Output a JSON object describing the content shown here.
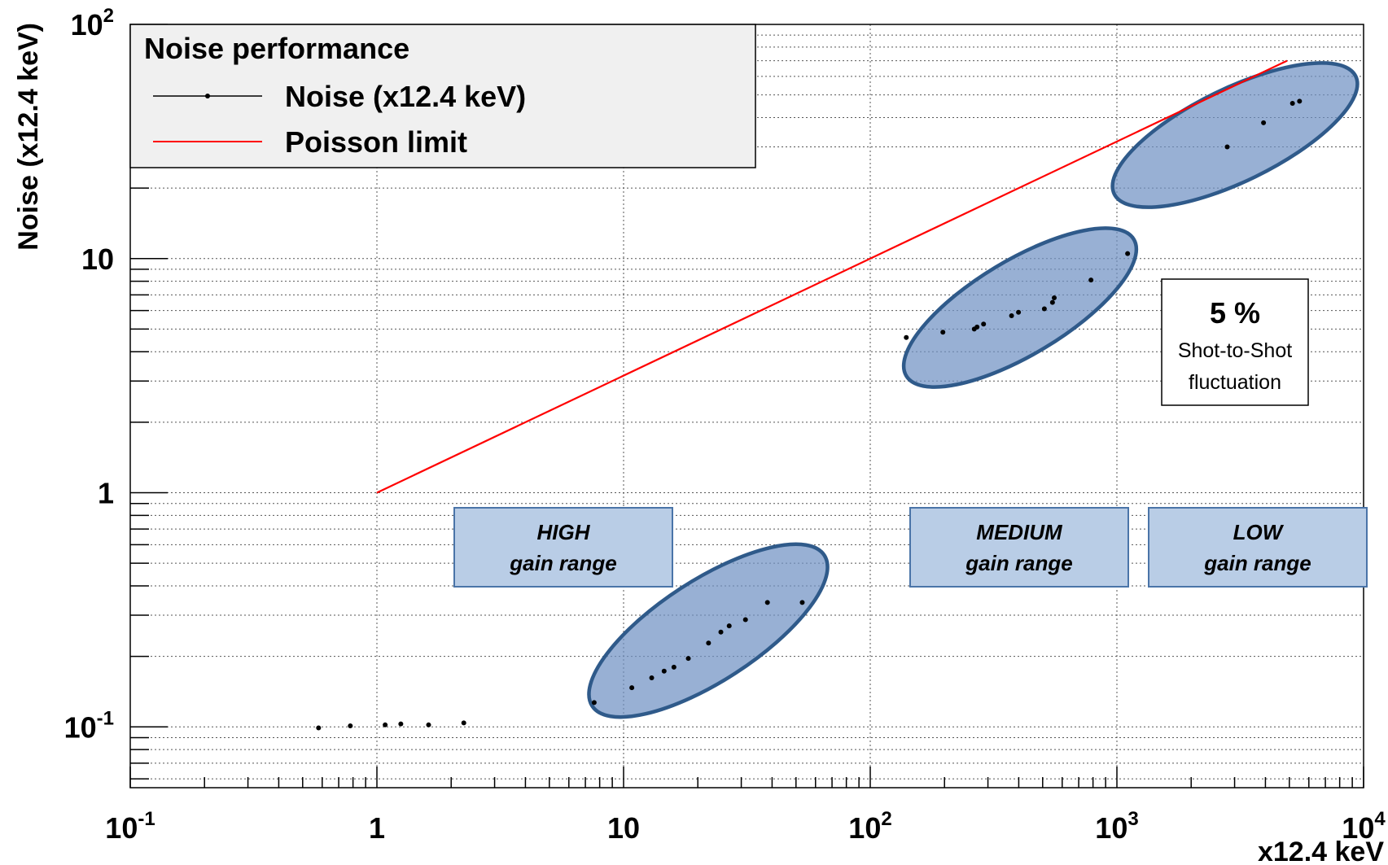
{
  "chart_data": {
    "type": "scatter",
    "title": "",
    "xlabel": "x12.4 keV",
    "ylabel": "Noise (x12.4 keV)",
    "xscale": "log",
    "yscale": "log",
    "xlim": [
      0.1,
      10000
    ],
    "ylim": [
      0.055,
      100
    ],
    "grid": true,
    "legend": {
      "title": "Noise performance",
      "placement": "top-left",
      "entries": [
        "Noise (x12.4 keV)",
        "Poisson limit"
      ]
    },
    "x_ticks": [
      {
        "base": "10",
        "exp": "-1"
      },
      {
        "base": "1",
        "exp": ""
      },
      {
        "base": "10",
        "exp": ""
      },
      {
        "base": "10",
        "exp": "2"
      },
      {
        "base": "10",
        "exp": "3"
      },
      {
        "base": "10",
        "exp": "4"
      }
    ],
    "y_ticks": [
      {
        "base": "10",
        "exp": "-1"
      },
      {
        "base": "1",
        "exp": ""
      },
      {
        "base": "10",
        "exp": ""
      },
      {
        "base": "10",
        "exp": "2"
      }
    ],
    "series": [
      {
        "name": "Noise (x12.4 keV)",
        "color": "#000000",
        "marker": "dot",
        "points": [
          [
            0.58,
            0.099
          ],
          [
            0.78,
            0.101
          ],
          [
            1.08,
            0.102
          ],
          [
            1.25,
            0.103
          ],
          [
            1.62,
            0.102
          ],
          [
            2.25,
            0.104
          ],
          [
            7.6,
            0.127
          ],
          [
            10.8,
            0.147
          ],
          [
            13.0,
            0.162
          ],
          [
            14.6,
            0.173
          ],
          [
            16.0,
            0.18
          ],
          [
            18.3,
            0.196
          ],
          [
            22.1,
            0.228
          ],
          [
            24.8,
            0.254
          ],
          [
            26.8,
            0.27
          ],
          [
            31.2,
            0.287
          ],
          [
            38.3,
            0.34
          ],
          [
            53.0,
            0.34
          ],
          [
            140,
            4.6
          ],
          [
            197,
            4.85
          ],
          [
            264,
            5.0
          ],
          [
            271,
            5.1
          ],
          [
            288,
            5.25
          ],
          [
            374,
            5.7
          ],
          [
            399,
            5.9
          ],
          [
            508,
            6.1
          ],
          [
            548,
            6.5
          ],
          [
            557,
            6.8
          ],
          [
            785,
            8.1
          ],
          [
            1105,
            10.5
          ],
          [
            2800,
            30
          ],
          [
            3930,
            38
          ],
          [
            5150,
            46
          ],
          [
            5500,
            47
          ]
        ]
      },
      {
        "name": "Poisson limit",
        "color": "#ff0000",
        "type": "line",
        "points": [
          [
            1,
            1
          ],
          [
            4900,
            70
          ]
        ]
      }
    ],
    "annotations": {
      "gain_boxes": [
        {
          "line1": "HIGH",
          "line2": "gain range"
        },
        {
          "line1": "MEDIUM",
          "line2": "gain range"
        },
        {
          "line1": "LOW",
          "line2": "gain range"
        }
      ],
      "fluctuation": {
        "value": "5 %",
        "line1": "Shot-to-Shot",
        "line2": "fluctuation"
      }
    },
    "colors": {
      "ellipse_fill": "#7092c4",
      "ellipse_stroke": "#2f5a8a",
      "gain_box_fill": "#b9cde6",
      "gain_box_stroke": "#4a74a8",
      "legend_bg": "#f0f0f0"
    }
  }
}
